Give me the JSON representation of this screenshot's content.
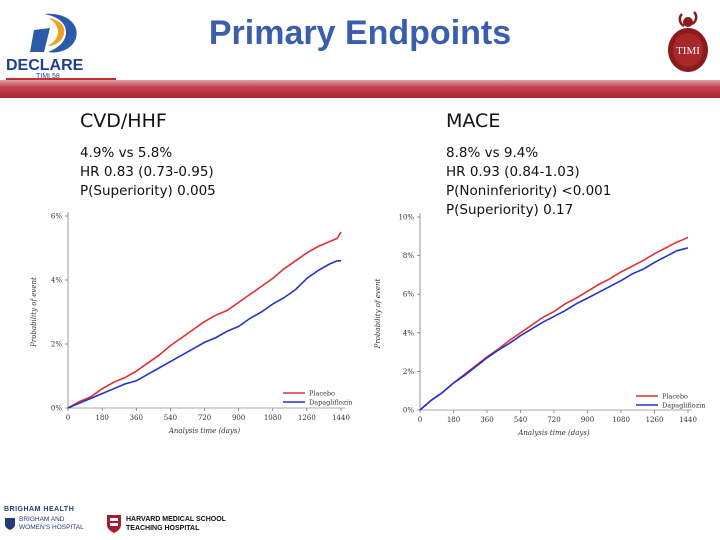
{
  "header": {
    "title": "Primary Endpoints",
    "declare_logo_text": "DECLARE",
    "declare_sub": "TIMI 58",
    "timi_logo_text": "TIMI"
  },
  "left_panel": {
    "heading": "CVD/HHF",
    "lines": [
      "4.9% vs 5.8%",
      "HR 0.83 (0.73-0.95)",
      "P(Superiority) 0.005"
    ]
  },
  "right_panel": {
    "heading": "MACE",
    "lines": [
      "8.8% vs 9.4%",
      "HR 0.93 (0.84-1.03)",
      "P(Noninferiority) <0.001",
      "P(Superiority) 0.17"
    ]
  },
  "footer": {
    "brigham_line1": "BRIGHAM HEALTH",
    "brigham_line2": "BRIGHAM AND",
    "brigham_line3": "WOMEN'S HOSPITAL",
    "harvard_line1": "HARVARD MEDICAL SCHOOL",
    "harvard_line2": "TEACHING HOSPITAL"
  },
  "colors": {
    "placebo": "#e03030",
    "dapagliflozin": "#2233cc",
    "title": "#3a5dae"
  },
  "chart_data": [
    {
      "type": "line",
      "xlabel": "Analysis time (days)",
      "ylabel": "Probability of event",
      "xlim": [
        0,
        1440
      ],
      "ylim": [
        0,
        6
      ],
      "xticks": [
        0,
        180,
        360,
        540,
        720,
        900,
        1080,
        1260,
        1440
      ],
      "yticks": [
        0,
        2,
        4,
        6
      ],
      "ytick_labels": [
        "0%",
        "2%",
        "4%",
        "6%"
      ],
      "legend": "bottom-right",
      "series": [
        {
          "name": "Placebo",
          "x": [
            0,
            60,
            120,
            180,
            240,
            300,
            360,
            420,
            480,
            540,
            600,
            660,
            720,
            780,
            840,
            900,
            960,
            1020,
            1080,
            1140,
            1200,
            1260,
            1320,
            1380,
            1420,
            1440
          ],
          "y": [
            0,
            0.2,
            0.35,
            0.6,
            0.8,
            0.95,
            1.15,
            1.4,
            1.65,
            1.95,
            2.2,
            2.45,
            2.7,
            2.9,
            3.05,
            3.3,
            3.55,
            3.8,
            4.05,
            4.35,
            4.6,
            4.85,
            5.05,
            5.2,
            5.3,
            5.5
          ]
        },
        {
          "name": "Dapagliflozin",
          "x": [
            0,
            60,
            120,
            180,
            240,
            300,
            360,
            420,
            480,
            540,
            600,
            660,
            720,
            780,
            840,
            900,
            960,
            1020,
            1080,
            1140,
            1200,
            1260,
            1320,
            1380,
            1420,
            1440
          ],
          "y": [
            0,
            0.15,
            0.3,
            0.45,
            0.6,
            0.75,
            0.85,
            1.05,
            1.25,
            1.45,
            1.65,
            1.85,
            2.05,
            2.2,
            2.4,
            2.55,
            2.8,
            3.0,
            3.25,
            3.45,
            3.7,
            4.05,
            4.3,
            4.5,
            4.6,
            4.6
          ]
        }
      ]
    },
    {
      "type": "line",
      "xlabel": "Analysis time (days)",
      "ylabel": "Probability of event",
      "xlim": [
        0,
        1440
      ],
      "ylim": [
        0,
        10
      ],
      "xticks": [
        0,
        180,
        360,
        540,
        720,
        900,
        1080,
        1260,
        1440
      ],
      "yticks": [
        0,
        2,
        4,
        6,
        8,
        10
      ],
      "ytick_labels": [
        "0%",
        "2%",
        "4%",
        "6%",
        "8%",
        "10%"
      ],
      "legend": "bottom-right",
      "series": [
        {
          "name": "Placebo",
          "x": [
            0,
            60,
            120,
            180,
            240,
            300,
            360,
            420,
            480,
            540,
            600,
            660,
            720,
            780,
            840,
            900,
            960,
            1020,
            1080,
            1140,
            1200,
            1260,
            1320,
            1380,
            1420,
            1440
          ],
          "y": [
            0,
            0.5,
            0.9,
            1.4,
            1.85,
            2.3,
            2.75,
            3.15,
            3.6,
            4.0,
            4.4,
            4.8,
            5.1,
            5.5,
            5.8,
            6.15,
            6.5,
            6.8,
            7.15,
            7.45,
            7.75,
            8.1,
            8.4,
            8.7,
            8.85,
            8.95
          ]
        },
        {
          "name": "Dapagliflozin",
          "x": [
            0,
            60,
            120,
            180,
            240,
            300,
            360,
            420,
            480,
            540,
            600,
            660,
            720,
            780,
            840,
            900,
            960,
            1020,
            1080,
            1140,
            1200,
            1260,
            1320,
            1380,
            1420,
            1440
          ],
          "y": [
            0,
            0.5,
            0.9,
            1.4,
            1.8,
            2.25,
            2.7,
            3.1,
            3.45,
            3.85,
            4.2,
            4.55,
            4.85,
            5.15,
            5.5,
            5.8,
            6.1,
            6.4,
            6.7,
            7.05,
            7.3,
            7.65,
            7.95,
            8.25,
            8.35,
            8.4
          ]
        }
      ]
    }
  ]
}
